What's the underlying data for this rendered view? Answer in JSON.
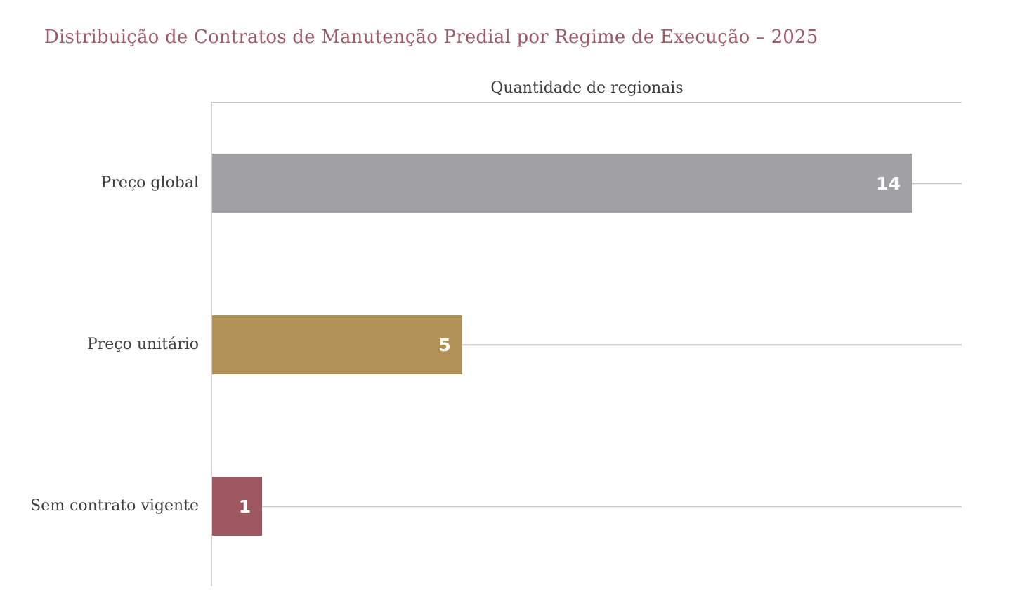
{
  "title": "Distribuição de Contratos de Manutenção Predial por Regime de Execução – 2025",
  "chart_data": {
    "type": "bar",
    "orientation": "horizontal",
    "title": "Distribuição de Contratos de Manutenção Predial por Regime de Execução – 2025",
    "axis_title": "Quantidade de regionais",
    "axis_title_position": "top-center",
    "categories": [
      "Preço global",
      "Preço unitário",
      "Sem contrato vigente"
    ],
    "values": [
      14,
      5,
      1
    ],
    "value_labels": [
      "14",
      "5",
      "1"
    ],
    "bar_colors": [
      "#a1a0a2",
      "#b29157",
      "#9d5862"
    ],
    "xlim": [
      0,
      15
    ],
    "legend": "none",
    "grid": "horizontal-category-centerlines",
    "value_label_position": "inside-end",
    "value_label_color": "#ffffff"
  },
  "colors": {
    "background": "#ffffff",
    "title_color": "#a05c66",
    "axis_title_color": "#3c3c3c",
    "category_label_color": "#3f3f3f",
    "gridline_color": "#c6c6c6",
    "axis_line_color": "#d4d4d4",
    "value_label_color": "#ffffff"
  }
}
